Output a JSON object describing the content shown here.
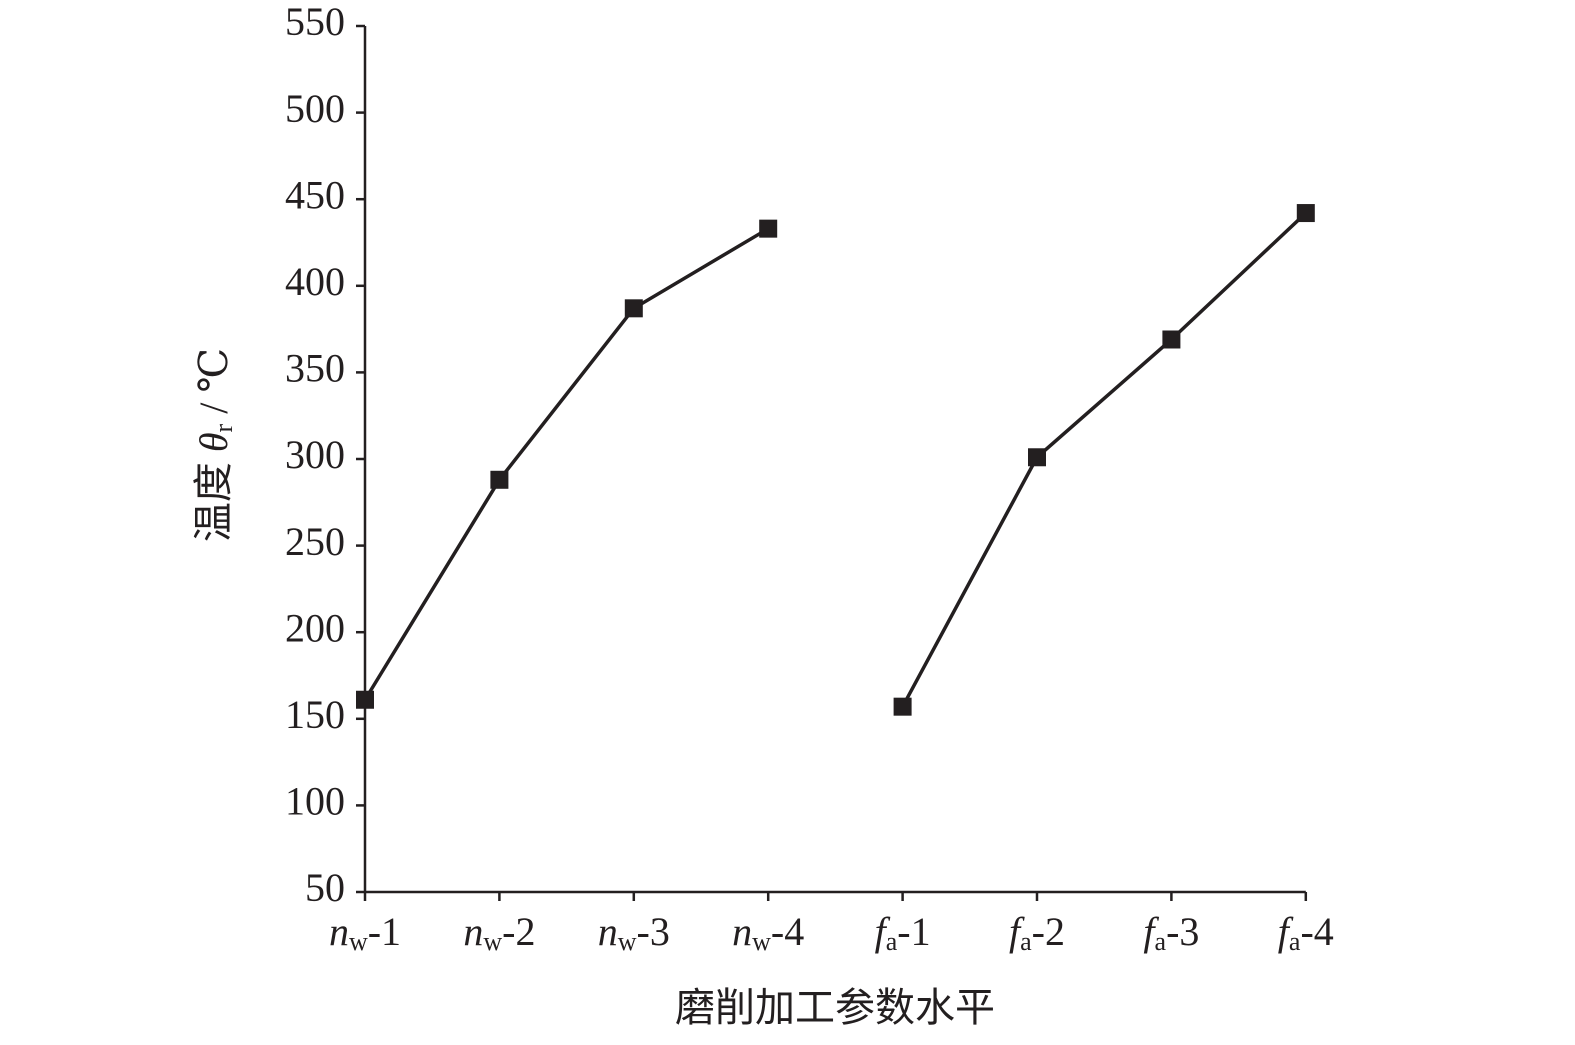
{
  "chart_data": {
    "type": "line",
    "x_label": "磨削加工参数水平",
    "y_label": "温度 θr / ℃",
    "categories": [
      "nw-1",
      "nw-2",
      "nw-3",
      "nw-4",
      "fa-1",
      "fa-2",
      "fa-3",
      "fa-4"
    ],
    "series": [
      {
        "color": "#231f20",
        "values": [
          161,
          288,
          387,
          433,
          null,
          null,
          null,
          null
        ]
      },
      {
        "color": "#231f20",
        "values": [
          null,
          null,
          null,
          null,
          157,
          301,
          369,
          442
        ]
      }
    ],
    "ylim": [
      50,
      550
    ],
    "yticks": [
      50,
      100,
      150,
      200,
      250,
      300,
      350,
      400,
      450,
      500,
      550
    ],
    "grid": false
  }
}
